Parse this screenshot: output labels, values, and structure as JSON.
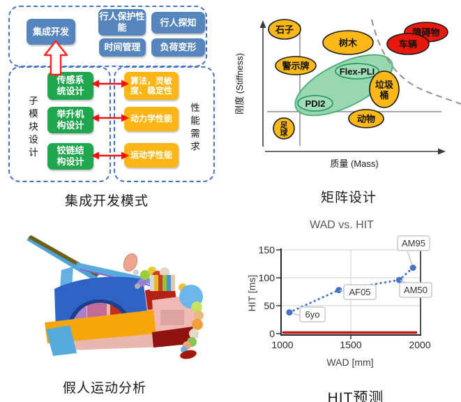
{
  "colors": {
    "box_blue": "#5585bd",
    "box_green": "#21a650",
    "box_yellow": "#fbb515",
    "bubble_yellow": "#fbb817",
    "bubble_red": "#e8190c",
    "impactor_green": "#9fdcb8",
    "zone_green": "#8fd5ab",
    "dashed_border_blue": "#4472c4",
    "arrow_red": "#ff2020",
    "trend_blue": "#4472c4",
    "baseline_red": "#b61714"
  },
  "panels": {
    "integration": {
      "caption": "集成开发模式",
      "top_group": {
        "main_box": "集成开发",
        "perf_boxes": [
          "行人保护性能",
          "行人探知",
          "时间管理",
          "负荷变形"
        ]
      },
      "left_group": {
        "side_label": "子模块设计",
        "boxes": [
          "传感系统设计",
          "举升机构设计",
          "铰链结构设计"
        ]
      },
      "right_group": {
        "side_label": "性能需求",
        "boxes": [
          "算法，灵敏度、稳定性",
          "动力学性能",
          "运动学性能"
        ]
      }
    },
    "matrix": {
      "caption": "矩阵设计",
      "x_label": "质量 (Mass)",
      "y_label": "刚度 (Stiffness)"
    },
    "dummy": {
      "caption": "假人运动分析"
    },
    "wad": {
      "caption": "HIT预测",
      "title": "WAD vs. HIT",
      "x_label": "WAD [mm]",
      "y_label": "HIT [ms]",
      "x_ticks": [
        "1000",
        "1500",
        "2000"
      ],
      "y_ticks": [
        "150",
        "100",
        "50",
        "0"
      ]
    }
  },
  "chart_data": [
    {
      "type": "scatter",
      "title": "矩阵设计",
      "xlabel": "质量 (Mass)",
      "ylabel": "刚度 (Stiffness)",
      "axis_note": "axes have no numeric ticks; bubble positions are relative 0-1",
      "bubbles": [
        {
          "label": "石子",
          "x": 0.11,
          "y": 0.96,
          "color": "#fbb817"
        },
        {
          "label": "树木",
          "x": 0.46,
          "y": 0.86,
          "color": "#fbb817"
        },
        {
          "label": "障碍物",
          "x": 0.89,
          "y": 0.94,
          "color": "#e8190c"
        },
        {
          "label": "车辆",
          "x": 0.79,
          "y": 0.84,
          "color": "#e8190c"
        },
        {
          "label": "警示牌",
          "x": 0.17,
          "y": 0.67,
          "color": "#fbb817"
        },
        {
          "label": "Flex-PLI",
          "x": 0.51,
          "y": 0.63,
          "color": "#9fdcb8"
        },
        {
          "label": "垃圾桶",
          "x": 0.66,
          "y": 0.48,
          "color": "#fbb817",
          "lines": [
            "垃圾",
            "桶"
          ]
        },
        {
          "label": "PDI2",
          "x": 0.28,
          "y": 0.37,
          "color": "#9fdcb8"
        },
        {
          "label": "动物",
          "x": 0.56,
          "y": 0.25,
          "color": "#fbb817"
        },
        {
          "label": "足球",
          "x": 0.1,
          "y": 0.18,
          "color": "#fbb817",
          "lines": [
            "足",
            "球"
          ]
        }
      ]
    },
    {
      "type": "scatter",
      "title": "WAD vs. HIT",
      "xlabel": "WAD [mm]",
      "ylabel": "HIT [ms]",
      "xlim": [
        1000,
        2000
      ],
      "ylim": [
        0,
        150
      ],
      "points": [
        {
          "label": "6yo",
          "x": 1050,
          "y": 38
        },
        {
          "label": "AF05",
          "x": 1410,
          "y": 78
        },
        {
          "label": "AM50",
          "x": 1850,
          "y": 96
        },
        {
          "label": "AM95",
          "x": 1950,
          "y": 118
        }
      ],
      "baseline": {
        "y": 0,
        "color": "#b61714"
      }
    }
  ]
}
